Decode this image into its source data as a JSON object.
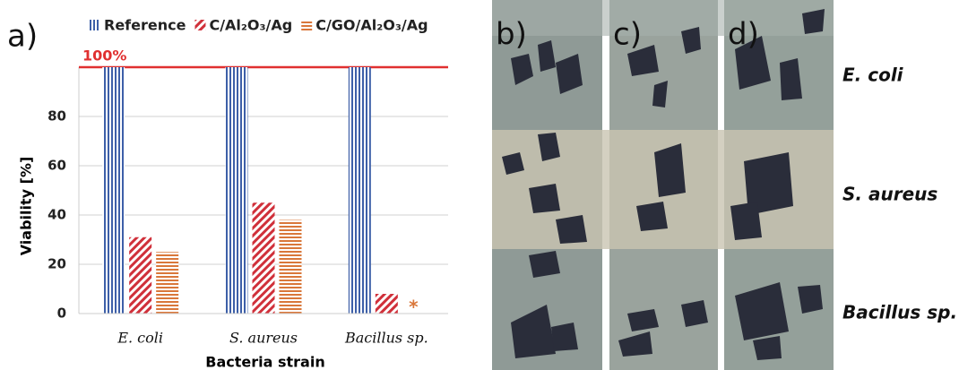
{
  "chart_data": {
    "type": "bar",
    "ylabel": "Viability [%]",
    "xlabel": "Bacteria strain",
    "categories": [
      "E. coli",
      "S. aureus",
      "Bacillus sp."
    ],
    "series": [
      {
        "name": "Reference",
        "color": "#3d5fa8",
        "values": [
          100,
          100,
          100
        ]
      },
      {
        "name": "C/Al₂O₃/Ag",
        "color": "#d0303a",
        "values": [
          31,
          45,
          8
        ]
      },
      {
        "name": "C/GO/Al₂O₃/Ag",
        "color": "#d9773a",
        "values": [
          25,
          38,
          null
        ]
      }
    ],
    "ylim": [
      0,
      100
    ],
    "yticks": [
      0,
      20,
      40,
      60,
      80
    ],
    "grid": true,
    "reference_line": {
      "value": 100,
      "label": "100%",
      "color": "#e03030"
    },
    "missing_marker": "*"
  },
  "panels": [
    "a)",
    "b)",
    "c)",
    "d)"
  ],
  "photo_rows": [
    "E. coli",
    "S. aureus",
    "Bacillus sp."
  ]
}
